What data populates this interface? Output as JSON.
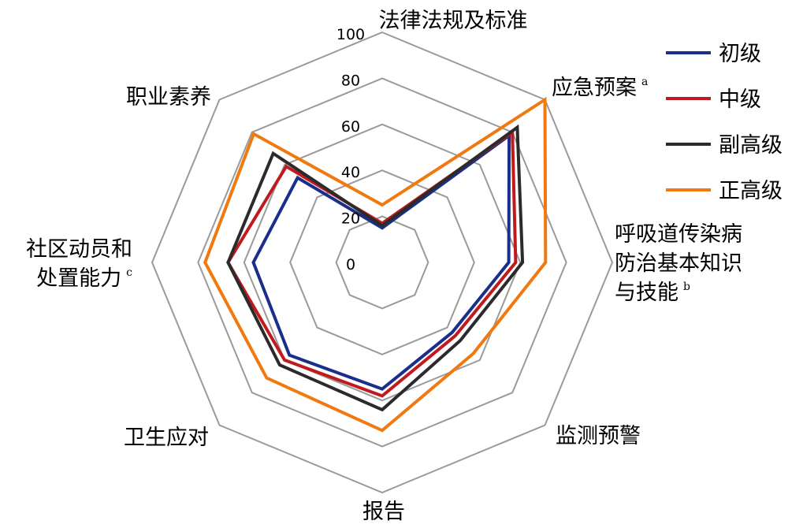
{
  "chart_data": {
    "type": "radar",
    "axes": [
      {
        "label": "法律法规及标准",
        "sup": ""
      },
      {
        "label": "应急预案",
        "sup": "a"
      },
      {
        "label": "呼吸道传染病",
        "label2": "防治基本知识",
        "label3": "与技能",
        "sup": "b"
      },
      {
        "label": "监测预警",
        "sup": ""
      },
      {
        "label": "报告",
        "sup": ""
      },
      {
        "label": "卫生应对",
        "sup": ""
      },
      {
        "label": "社区动员和",
        "label2": "处置能力",
        "sup": "c"
      },
      {
        "label": "职业素养",
        "sup": ""
      }
    ],
    "ticks": [
      "0",
      "20",
      "40",
      "60",
      "80",
      "100"
    ],
    "range": [
      0,
      100
    ],
    "series": [
      {
        "name": "初级",
        "color": "#1a2f8c",
        "values": [
          15,
          78,
          55,
          43,
          55,
          57,
          56,
          52
        ]
      },
      {
        "name": "中级",
        "color": "#c0191e",
        "values": [
          17,
          80,
          58,
          45,
          58,
          60,
          67,
          59
        ]
      },
      {
        "name": "副高级",
        "color": "#2b2b2b",
        "values": [
          16,
          83,
          61,
          48,
          64,
          63,
          67,
          67
        ]
      },
      {
        "name": "正高级",
        "color": "#f07a10",
        "values": [
          25,
          100,
          71,
          56,
          73,
          71,
          77,
          79
        ]
      }
    ],
    "grid_color": "#9a9a9a",
    "legend": "top-right"
  }
}
